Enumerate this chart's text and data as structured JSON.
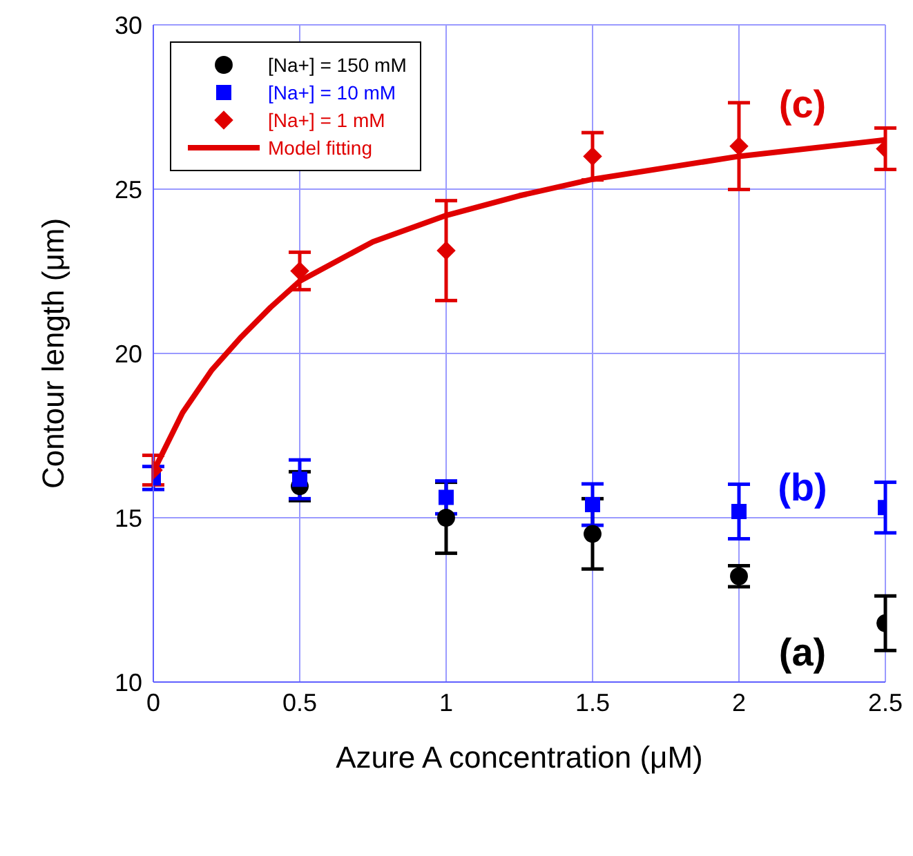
{
  "chart_data": {
    "type": "scatter",
    "xlabel": "Azure A concentration (μM)",
    "ylabel": "Contour length (μm)",
    "x": [
      0,
      0.5,
      1,
      1.5,
      2,
      2.5
    ],
    "series": [
      {
        "name": "[Na+] = 150 mM",
        "color": "#000000",
        "marker": "circle",
        "values": [
          null,
          15.96,
          15.0,
          14.51,
          13.22,
          11.79
        ],
        "errors": [
          null,
          0.44,
          1.08,
          1.07,
          0.32,
          0.83
        ]
      },
      {
        "name": "[Na+] = 10 mM",
        "color": "#0000ff",
        "marker": "square",
        "values": [
          16.21,
          16.17,
          15.62,
          15.4,
          15.19,
          15.31
        ],
        "errors": [
          0.35,
          0.59,
          0.5,
          0.63,
          0.83,
          0.77
        ]
      },
      {
        "name": "[Na+] = 1 mM",
        "color": "#e00000",
        "marker": "diamond",
        "values": [
          16.45,
          22.51,
          23.13,
          26.0,
          26.31,
          26.23
        ],
        "errors": [
          0.45,
          0.57,
          1.52,
          0.72,
          1.32,
          0.63
        ]
      },
      {
        "name": "Model fitting",
        "type": "line",
        "color": "#e00000",
        "marker": "none",
        "x": [
          0,
          0.1,
          0.2,
          0.3,
          0.4,
          0.5,
          0.75,
          1,
          1.25,
          1.5,
          2,
          2.5
        ],
        "values": [
          16.4,
          18.2,
          19.5,
          20.5,
          21.4,
          22.2,
          23.4,
          24.2,
          24.8,
          25.3,
          26.0,
          26.5
        ]
      }
    ],
    "annotations": [
      "(a)",
      "(b)",
      "(c)"
    ],
    "xlim": [
      0,
      2.5
    ],
    "xticks": [
      0,
      0.5,
      1,
      1.5,
      2,
      2.5
    ],
    "ylim": [
      10,
      30
    ],
    "yticks": [
      10,
      15,
      20,
      25,
      30
    ],
    "grid": true,
    "legend": "top left"
  }
}
